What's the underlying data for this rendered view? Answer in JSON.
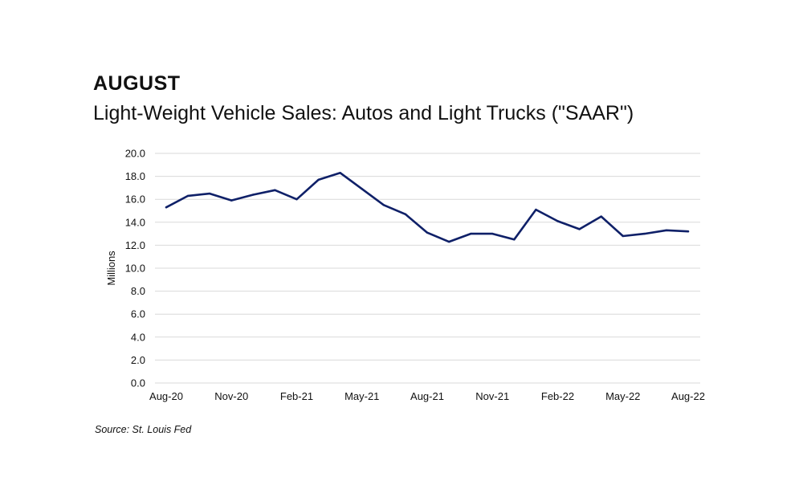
{
  "header": {
    "headline": "AUGUST",
    "subtitle": "Light-Weight Vehicle Sales: Autos and Light Trucks (\"SAAR\")"
  },
  "footer": {
    "source": "Source: St. Louis Fed"
  },
  "colors": {
    "line": "#0f2068",
    "grid": "#d9d9d9",
    "text": "#111111"
  },
  "chart_data": {
    "type": "line",
    "title": "Light-Weight Vehicle Sales: Autos and Light Trucks (\"SAAR\")",
    "xlabel": "",
    "ylabel": "Millions",
    "ylim": [
      0,
      20
    ],
    "yticks": [
      "0.0",
      "2.0",
      "4.0",
      "6.0",
      "8.0",
      "10.0",
      "12.0",
      "14.0",
      "16.0",
      "18.0",
      "20.0"
    ],
    "xtick_labels": [
      "Aug-20",
      "Nov-20",
      "Feb-21",
      "May-21",
      "Aug-21",
      "Nov-21",
      "Feb-22",
      "May-22",
      "Aug-22"
    ],
    "x": [
      "Aug-20",
      "Sep-20",
      "Oct-20",
      "Nov-20",
      "Dec-20",
      "Jan-21",
      "Feb-21",
      "Mar-21",
      "Apr-21",
      "May-21",
      "Jun-21",
      "Jul-21",
      "Aug-21",
      "Sep-21",
      "Oct-21",
      "Nov-21",
      "Dec-21",
      "Jan-22",
      "Feb-22",
      "Mar-22",
      "Apr-22",
      "May-22",
      "Jun-22",
      "Jul-22",
      "Aug-22"
    ],
    "series": [
      {
        "values": [
          15.3,
          16.3,
          16.5,
          15.9,
          16.4,
          16.8,
          16.0,
          17.7,
          18.3,
          16.9,
          15.5,
          14.7,
          13.1,
          12.3,
          13.0,
          13.0,
          12.5,
          15.1,
          14.1,
          13.4,
          14.5,
          12.8,
          13.0,
          13.3,
          13.2
        ]
      }
    ],
    "grid": true,
    "legend": "none"
  }
}
